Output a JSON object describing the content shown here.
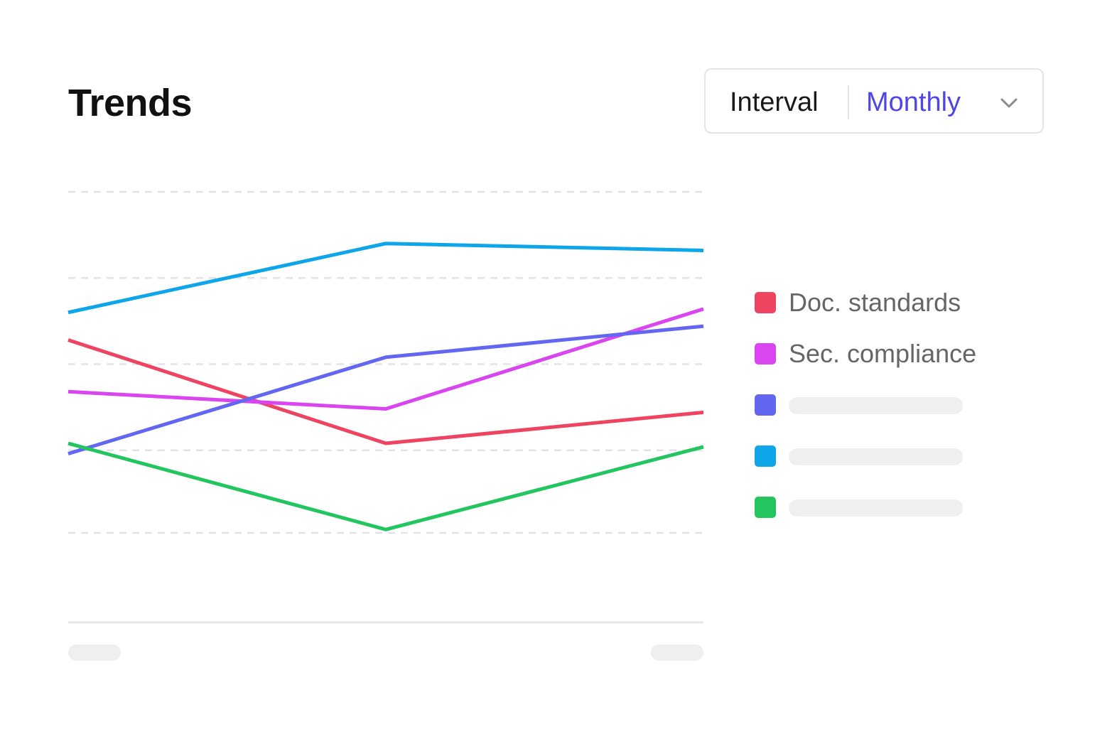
{
  "header": {
    "title": "Trends"
  },
  "interval": {
    "label": "Interval",
    "value": "Monthly",
    "icon": "chevron-down-icon"
  },
  "chart_data": {
    "type": "line",
    "title": "Trends",
    "x": [
      0,
      1,
      2
    ],
    "ylim": [
      0,
      100
    ],
    "grid": true,
    "legend_position": "right",
    "series": [
      {
        "name": "Doc. standards",
        "color": "#ef4461",
        "values": [
          57,
          27,
          36
        ]
      },
      {
        "name": "Sec. compliance",
        "color": "#d946ef",
        "values": [
          42,
          37,
          66
        ]
      },
      {
        "name": "",
        "color": "#6366f1",
        "values": [
          24,
          52,
          61
        ]
      },
      {
        "name": "",
        "color": "#0ea5e9",
        "values": [
          65,
          85,
          83
        ]
      },
      {
        "name": "",
        "color": "#22c55e",
        "values": [
          27,
          2,
          26
        ]
      }
    ]
  }
}
